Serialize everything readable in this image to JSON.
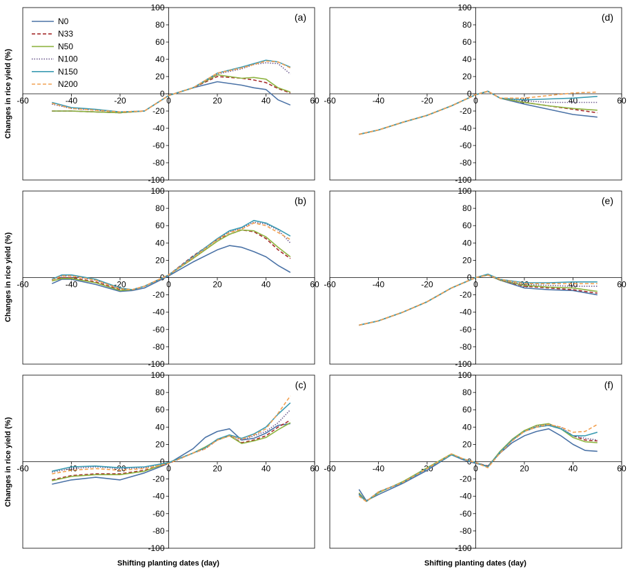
{
  "figure": {
    "ylabel": "Changes in rice yield (%)",
    "xlabel": "Shifting planting dates (day)"
  },
  "legend": [
    {
      "name": "N0",
      "color": "#4A72A6",
      "dash": "solid"
    },
    {
      "name": "N33",
      "color": "#A52A2A",
      "dash": "dashed"
    },
    {
      "name": "N50",
      "color": "#8DB33F",
      "dash": "solid"
    },
    {
      "name": "N100",
      "color": "#6C5A8E",
      "dash": "dotted"
    },
    {
      "name": "N150",
      "color": "#3A9BB2",
      "dash": "solid"
    },
    {
      "name": "N200",
      "color": "#F2A050",
      "dash": "dashed"
    }
  ],
  "chart_data": [
    {
      "panel": "(a)",
      "type": "line",
      "xlim": [
        -60,
        60
      ],
      "ylim": [
        -100,
        100
      ],
      "xticks": [
        "-60",
        "-40",
        "-20",
        "0",
        "20",
        "40",
        "60"
      ],
      "yticks": [
        "100",
        "80",
        "60",
        "40",
        "20",
        "0",
        "-20",
        "-40",
        "-60",
        "-80",
        "-100"
      ],
      "x": [
        -48,
        -40,
        -30,
        -20,
        -10,
        0,
        10,
        20,
        30,
        35,
        40,
        45,
        50
      ],
      "series": [
        {
          "name": "N0",
          "values": [
            -20,
            -20,
            -21,
            -22,
            -20,
            -2,
            7,
            14,
            10,
            7,
            5,
            -7,
            -13
          ]
        },
        {
          "name": "N33",
          "values": [
            -20,
            -20,
            -21,
            -22,
            -20,
            -2,
            7,
            20,
            18,
            16,
            13,
            6,
            1
          ]
        },
        {
          "name": "N50",
          "values": [
            -20,
            -20,
            -21,
            -22,
            -20,
            -2,
            7,
            22,
            18,
            19,
            17,
            7,
            2
          ]
        },
        {
          "name": "N100",
          "values": [
            -12,
            -17,
            -19,
            -21,
            -20,
            -2,
            7,
            23,
            29,
            34,
            36,
            35,
            23
          ]
        },
        {
          "name": "N150",
          "values": [
            -10,
            -16,
            -18,
            -21,
            -20,
            -2,
            7,
            24,
            31,
            35,
            39,
            37,
            31
          ]
        },
        {
          "name": "N200",
          "values": [
            -11,
            -17,
            -19,
            -21,
            -20,
            -2,
            7,
            24,
            30,
            34,
            38,
            37,
            30
          ]
        }
      ]
    },
    {
      "panel": "(d)",
      "type": "line",
      "xlim": [
        -60,
        60
      ],
      "ylim": [
        -100,
        100
      ],
      "xticks": [
        "-60",
        "-40",
        "-20",
        "0",
        "20",
        "40",
        "60"
      ],
      "yticks": [
        "100",
        "80",
        "60",
        "40",
        "20",
        "0",
        "-20",
        "-40",
        "-60",
        "-80",
        "-100"
      ],
      "x": [
        -48,
        -40,
        -30,
        -20,
        -10,
        0,
        5,
        10,
        20,
        30,
        40,
        50
      ],
      "series": [
        {
          "name": "N0",
          "values": [
            -47,
            -42,
            -33,
            -25,
            -14,
            -1,
            3,
            -5,
            -12,
            -18,
            -24,
            -27
          ]
        },
        {
          "name": "N33",
          "values": [
            -47,
            -42,
            -33,
            -25,
            -14,
            -1,
            3,
            -5,
            -10,
            -14,
            -18,
            -22
          ]
        },
        {
          "name": "N50",
          "values": [
            -47,
            -42,
            -33,
            -25,
            -14,
            -1,
            3,
            -5,
            -10,
            -14,
            -17,
            -19
          ]
        },
        {
          "name": "N100",
          "values": [
            -47,
            -42,
            -33,
            -25,
            -14,
            -1,
            3,
            -5,
            -8,
            -10,
            -10,
            -10
          ]
        },
        {
          "name": "N150",
          "values": [
            -47,
            -42,
            -33,
            -25,
            -14,
            -1,
            3,
            -5,
            -7,
            -6,
            -5,
            -3
          ]
        },
        {
          "name": "N200",
          "values": [
            -47,
            -42,
            -33,
            -25,
            -14,
            -1,
            3,
            -5,
            -5,
            -2,
            1,
            2
          ]
        }
      ]
    },
    {
      "panel": "(b)",
      "type": "line",
      "xlim": [
        -60,
        60
      ],
      "ylim": [
        -100,
        100
      ],
      "xticks": [
        "-60",
        "-40",
        "-20",
        "0",
        "20",
        "40",
        "60"
      ],
      "yticks": [
        "100",
        "80",
        "60",
        "40",
        "20",
        "0",
        "-20",
        "-40",
        "-60",
        "-80",
        "-100"
      ],
      "x": [
        -48,
        -44,
        -40,
        -30,
        -20,
        -15,
        -10,
        0,
        10,
        20,
        25,
        30,
        35,
        40,
        45,
        50
      ],
      "series": [
        {
          "name": "N0",
          "values": [
            -7,
            -2,
            -2,
            -8,
            -16,
            -15,
            -12,
            2,
            18,
            32,
            37,
            35,
            30,
            24,
            14,
            6
          ]
        },
        {
          "name": "N33",
          "values": [
            -2,
            0,
            0,
            -5,
            -14,
            -14,
            -10,
            3,
            25,
            44,
            50,
            55,
            53,
            45,
            32,
            22
          ]
        },
        {
          "name": "N50",
          "values": [
            -4,
            -1,
            -1,
            -6,
            -15,
            -14,
            -10,
            3,
            22,
            42,
            50,
            55,
            54,
            47,
            35,
            24
          ]
        },
        {
          "name": "N100",
          "values": [
            -3,
            2,
            2,
            -3,
            -13,
            -14,
            -10,
            3,
            23,
            44,
            53,
            57,
            64,
            62,
            55,
            40
          ]
        },
        {
          "name": "N150",
          "values": [
            -2,
            3,
            3,
            -2,
            -12,
            -14,
            -10,
            3,
            24,
            45,
            54,
            58,
            66,
            63,
            56,
            48
          ]
        },
        {
          "name": "N200",
          "values": [
            -3,
            2,
            2,
            -3,
            -13,
            -14,
            -10,
            3,
            23,
            44,
            52,
            56,
            63,
            60,
            52,
            44
          ]
        }
      ]
    },
    {
      "panel": "(e)",
      "type": "line",
      "xlim": [
        -60,
        60
      ],
      "ylim": [
        -100,
        100
      ],
      "xticks": [
        "-60",
        "-40",
        "-20",
        "0",
        "20",
        "40",
        "60"
      ],
      "yticks": [
        "100",
        "80",
        "60",
        "40",
        "20",
        "0",
        "-20",
        "-40",
        "-60",
        "-80",
        "-100"
      ],
      "x": [
        -48,
        -40,
        -30,
        -20,
        -10,
        0,
        5,
        10,
        20,
        30,
        40,
        50
      ],
      "series": [
        {
          "name": "N0",
          "values": [
            -55,
            -50,
            -40,
            -28,
            -12,
            0,
            3,
            -3,
            -12,
            -14,
            -15,
            -20
          ]
        },
        {
          "name": "N33",
          "values": [
            -55,
            -50,
            -40,
            -28,
            -12,
            0,
            3,
            -3,
            -10,
            -12,
            -14,
            -18
          ]
        },
        {
          "name": "N50",
          "values": [
            -55,
            -50,
            -40,
            -28,
            -12,
            0,
            3,
            -3,
            -9,
            -11,
            -12,
            -16
          ]
        },
        {
          "name": "N100",
          "values": [
            -55,
            -50,
            -40,
            -28,
            -12,
            0,
            3,
            -3,
            -8,
            -9,
            -10,
            -10
          ]
        },
        {
          "name": "N150",
          "values": [
            -55,
            -50,
            -40,
            -28,
            -12,
            0,
            4,
            -2,
            -6,
            -6,
            -5,
            -5
          ]
        },
        {
          "name": "N200",
          "values": [
            -55,
            -50,
            -40,
            -28,
            -12,
            0,
            3,
            -2,
            -7,
            -7,
            -7,
            -7
          ]
        }
      ]
    },
    {
      "panel": "(c)",
      "type": "line",
      "xlim": [
        -60,
        60
      ],
      "ylim": [
        -100,
        100
      ],
      "xticks": [
        "-60",
        "-40",
        "-20",
        "0",
        "20",
        "40",
        "60"
      ],
      "yticks": [
        "100",
        "80",
        "60",
        "40",
        "20",
        "0",
        "-20",
        "-40",
        "-60",
        "-80",
        "-100"
      ],
      "x": [
        -48,
        -40,
        -30,
        -20,
        -10,
        0,
        10,
        15,
        20,
        25,
        30,
        35,
        40,
        45,
        50
      ],
      "series": [
        {
          "name": "N0",
          "values": [
            -26,
            -21,
            -18,
            -21,
            -13,
            -2,
            15,
            28,
            35,
            38,
            25,
            27,
            33,
            42,
            44
          ]
        },
        {
          "name": "N33",
          "values": [
            -21,
            -16,
            -14,
            -14,
            -10,
            -2,
            10,
            15,
            25,
            30,
            22,
            25,
            30,
            40,
            48
          ]
        },
        {
          "name": "N50",
          "values": [
            -22,
            -17,
            -15,
            -15,
            -11,
            -1,
            10,
            17,
            25,
            30,
            21,
            24,
            28,
            37,
            45
          ]
        },
        {
          "name": "N100",
          "values": [
            -12,
            -8,
            -6,
            -8,
            -7,
            -1,
            10,
            16,
            25,
            30,
            25,
            30,
            35,
            45,
            60
          ]
        },
        {
          "name": "N150",
          "values": [
            -11,
            -6,
            -5,
            -7,
            -6,
            -1,
            10,
            16,
            26,
            31,
            27,
            32,
            40,
            55,
            68
          ]
        },
        {
          "name": "N200",
          "values": [
            -14,
            -10,
            -8,
            -10,
            -8,
            -2,
            10,
            15,
            25,
            30,
            26,
            31,
            38,
            56,
            76
          ]
        }
      ]
    },
    {
      "panel": "(f)",
      "type": "line",
      "xlim": [
        -60,
        60
      ],
      "ylim": [
        -100,
        100
      ],
      "xticks": [
        "-60",
        "-40",
        "-20",
        "0",
        "20",
        "40",
        "60"
      ],
      "yticks": [
        "100",
        "80",
        "60",
        "40",
        "20",
        "0",
        "-20",
        "-40",
        "-60",
        "-80",
        "-100"
      ],
      "x": [
        -48,
        -45,
        -40,
        -30,
        -20,
        -10,
        -5,
        0,
        5,
        10,
        15,
        20,
        25,
        30,
        35,
        40,
        45,
        50
      ],
      "series": [
        {
          "name": "N0",
          "values": [
            -32,
            -45,
            -38,
            -25,
            -10,
            8,
            2,
            -2,
            -5,
            10,
            22,
            30,
            35,
            38,
            30,
            20,
            13,
            12
          ]
        },
        {
          "name": "N33",
          "values": [
            -38,
            -46,
            -35,
            -24,
            -8,
            8,
            3,
            -1,
            -5,
            11,
            25,
            35,
            40,
            42,
            38,
            30,
            25,
            24
          ]
        },
        {
          "name": "N50",
          "values": [
            -36,
            -46,
            -36,
            -23,
            -7,
            9,
            3,
            -1,
            -6,
            12,
            26,
            36,
            42,
            44,
            38,
            28,
            23,
            22
          ]
        },
        {
          "name": "N100",
          "values": [
            -37,
            -46,
            -35,
            -24,
            -8,
            8,
            3,
            -1,
            -6,
            11,
            25,
            35,
            41,
            43,
            40,
            30,
            27,
            25
          ]
        },
        {
          "name": "N150",
          "values": [
            -38,
            -46,
            -35,
            -24,
            -8,
            8,
            3,
            -1,
            -6,
            11,
            25,
            35,
            40,
            42,
            38,
            30,
            30,
            34
          ]
        },
        {
          "name": "N200",
          "values": [
            -40,
            -46,
            -35,
            -24,
            -8,
            9,
            3,
            -1,
            -7,
            10,
            24,
            35,
            40,
            43,
            40,
            34,
            35,
            43
          ]
        }
      ]
    }
  ]
}
